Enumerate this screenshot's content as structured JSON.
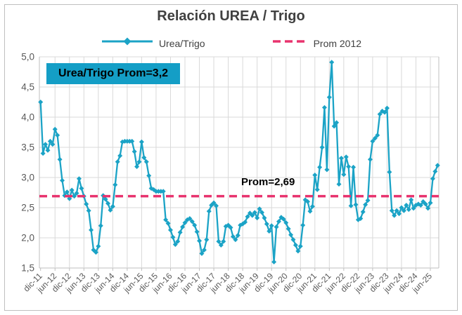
{
  "title": "Relación UREA / Trigo",
  "legend": {
    "series_label": "Urea/Trigo",
    "avg_label": "Prom 2012"
  },
  "annotations": {
    "box_label": "Urea/Trigo Prom=3,2",
    "avg_line_label": "Prom=2,69"
  },
  "colors": {
    "series": "#1BA3C6",
    "avg_line": "#E8336E",
    "box_fill": "#149EC6",
    "title_text": "#404040",
    "axis_text": "#595959",
    "gridline": "#D9D9D9",
    "axis_line": "#BFBFBF",
    "frame": "#BFBFBF"
  },
  "chart_data": {
    "type": "line",
    "title": "Relación UREA / Trigo",
    "x_axis_label": "",
    "y_axis_label": "",
    "ylim": [
      1.5,
      5.0
    ],
    "ytick_values": [
      5.0,
      4.5,
      4.0,
      3.5,
      3.0,
      2.5,
      2.0,
      1.5
    ],
    "ytick_labels": [
      "5,0",
      "4,5",
      "4,0",
      "3,5",
      "3,0",
      "2,5",
      "2,0",
      "1,5"
    ],
    "grid": true,
    "legend_position": "top",
    "x_labels": [
      "dic-11",
      "jun-12",
      "dic-12",
      "jun-13",
      "dic-13",
      "jun-14",
      "dic-14",
      "jun-15",
      "dic-15",
      "jun-16",
      "dic-16",
      "jun-17",
      "dic-17",
      "jun-18",
      "dic-18",
      "jun-19",
      "dic-19",
      "jun-20",
      "dic-20",
      "jun-21",
      "dic-21",
      "jun-22",
      "dic-22",
      "jun-23",
      "dic-23",
      "jun-24",
      "dic-24",
      "jun-25"
    ],
    "x_label_every": 6,
    "frequency": "monthly starting dic-11",
    "series": [
      {
        "name": "Urea/Trigo",
        "marker": "diamond",
        "values": [
          4.25,
          3.4,
          3.55,
          3.45,
          3.6,
          3.55,
          3.8,
          3.7,
          3.3,
          2.95,
          2.7,
          2.76,
          2.65,
          2.79,
          2.69,
          2.74,
          2.98,
          2.82,
          2.69,
          2.56,
          2.45,
          2.13,
          1.8,
          1.76,
          1.86,
          2.2,
          2.7,
          2.64,
          2.57,
          2.46,
          2.52,
          2.88,
          3.26,
          3.36,
          3.59,
          3.6,
          3.6,
          3.6,
          3.6,
          3.43,
          3.18,
          3.26,
          3.59,
          3.33,
          3.26,
          3.03,
          2.82,
          2.8,
          2.77,
          2.77,
          2.77,
          2.77,
          2.3,
          2.24,
          2.13,
          2.01,
          1.89,
          1.94,
          2.09,
          2.18,
          2.25,
          2.3,
          2.32,
          2.27,
          2.21,
          2.1,
          1.95,
          1.74,
          1.8,
          1.97,
          2.44,
          2.54,
          2.58,
          2.53,
          1.94,
          1.88,
          1.94,
          2.19,
          2.21,
          2.17,
          2.02,
          1.97,
          2.04,
          2.21,
          2.23,
          2.26,
          2.35,
          2.41,
          2.37,
          2.42,
          2.33,
          2.48,
          2.42,
          2.33,
          2.23,
          2.11,
          2.2,
          1.6,
          2.18,
          2.27,
          2.34,
          2.31,
          2.25,
          2.15,
          2.05,
          1.97,
          1.88,
          1.78,
          1.86,
          2.21,
          2.63,
          2.6,
          2.44,
          2.52,
          3.04,
          2.8,
          3.17,
          3.5,
          4.16,
          3.13,
          4.33,
          4.91,
          3.85,
          3.91,
          2.89,
          3.32,
          3.05,
          3.34,
          3.18,
          2.53,
          3.17,
          2.55,
          2.3,
          2.32,
          2.43,
          2.55,
          2.62,
          3.3,
          3.6,
          3.65,
          3.7,
          4.05,
          4.1,
          4.08,
          4.15,
          3.09,
          2.45,
          2.37,
          2.45,
          2.4,
          2.5,
          2.45,
          2.54,
          2.47,
          2.63,
          2.49,
          2.54,
          2.56,
          2.54,
          2.6,
          2.56,
          2.49,
          2.58,
          2.98,
          3.1,
          3.2
        ]
      }
    ],
    "avg_line": {
      "name": "Prom 2012",
      "value": 2.69,
      "style": "dashed"
    }
  }
}
